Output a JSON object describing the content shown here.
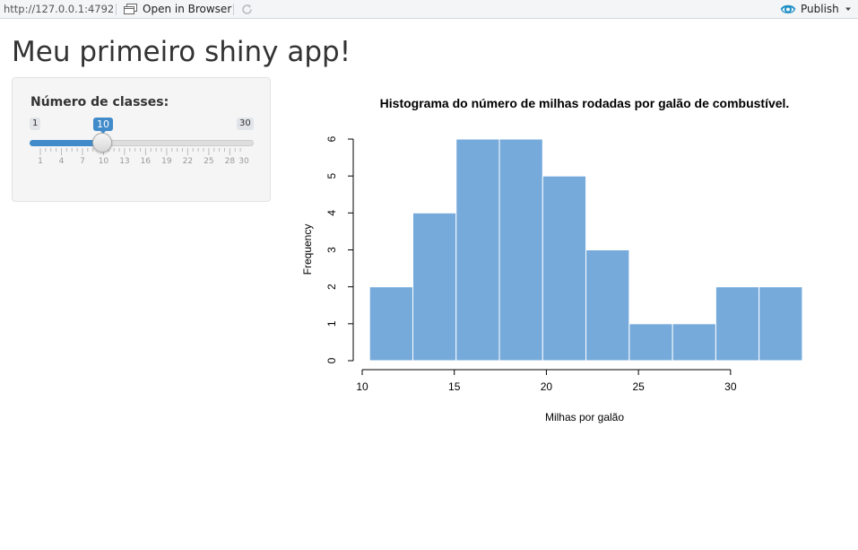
{
  "toolbar": {
    "url": "http://127.0.0.1:4792",
    "open_in_browser_label": "Open in Browser",
    "publish_label": "Publish",
    "accent_color": "#1a8fc7"
  },
  "app": {
    "title": "Meu primeiro shiny app!"
  },
  "sidebar": {
    "slider": {
      "label": "Número de classes:",
      "min": 1,
      "max": 30,
      "value": 10,
      "min_label": "1",
      "max_label": "30",
      "value_label": "10",
      "tick_labels": [
        "1",
        "4",
        "7",
        "10",
        "13",
        "16",
        "19",
        "22",
        "25",
        "28",
        "30"
      ],
      "bar_color": "#428bca"
    }
  },
  "chart_data": {
    "type": "bar",
    "title": "Histograma do número de milhas rodadas por galão de combustível.",
    "xlabel": "Milhas por galão",
    "ylabel": "Frequency",
    "bin_edges": [
      10.4,
      12.75,
      15.1,
      17.45,
      19.8,
      22.15,
      24.5,
      26.85,
      29.2,
      31.55,
      33.9
    ],
    "values": [
      2,
      4,
      6,
      6,
      5,
      3,
      1,
      1,
      2,
      2
    ],
    "xlim": [
      10,
      34
    ],
    "ylim": [
      0,
      6
    ],
    "x_ticks": [
      "10",
      "15",
      "20",
      "25",
      "30"
    ],
    "y_ticks": [
      "0",
      "1",
      "2",
      "3",
      "4",
      "5",
      "6"
    ],
    "bar_color": "#75aadb",
    "bar_border": "#ffffff",
    "grid": false
  }
}
